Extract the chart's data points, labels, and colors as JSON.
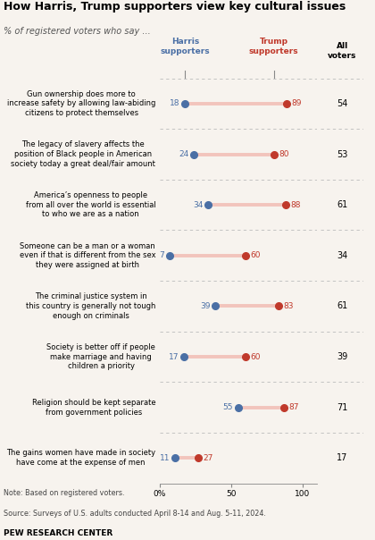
{
  "title": "How Harris, Trump supporters view key cultural issues",
  "subtitle": "% of registered voters who say ...",
  "categories": [
    "Gun ownership does more to\nincrease safety by allowing law-abiding\ncitizens to protect themselves",
    "The legacy of slavery affects the\nposition of Black people in American\nsociety today a great deal/fair amount",
    "America’s openness to people\nfrom all over the world is essential\nto who we are as a nation",
    "Someone can be a man or a woman\neven if that is different from the sex\nthey were assigned at birth",
    "The criminal justice system in\nthis country is generally not tough\nenough on criminals",
    "Society is better off if people\nmake marriage and having\nchildren a priority",
    "Religion should be kept separate\nfrom government policies",
    "The gains women have made in society\nhave come at the expense of men"
  ],
  "harris": [
    18,
    24,
    34,
    7,
    39,
    17,
    55,
    11
  ],
  "trump": [
    89,
    80,
    88,
    60,
    83,
    60,
    87,
    27
  ],
  "all_voters": [
    54,
    53,
    61,
    34,
    61,
    39,
    71,
    17
  ],
  "harris_color": "#4a6fa5",
  "trump_color": "#c0392b",
  "line_color_trump_higher": "#f2c4bc",
  "line_color_harris_higher": "#c2cfe0",
  "bg_color": "#f7f3ee",
  "all_voters_bg": "#ede8e0",
  "separator_color": "#bbbbbb",
  "note": "Note: Based on registered voters.",
  "source": "Source: Surveys of U.S. adults conducted April 8-14 and Aug. 5-11, 2024.",
  "org": "PEW RESEARCH CENTER",
  "x_min": 0,
  "x_max": 110,
  "x_ticks": [
    0,
    50,
    100
  ],
  "x_tick_labels": [
    "0%",
    "50",
    "100"
  ]
}
